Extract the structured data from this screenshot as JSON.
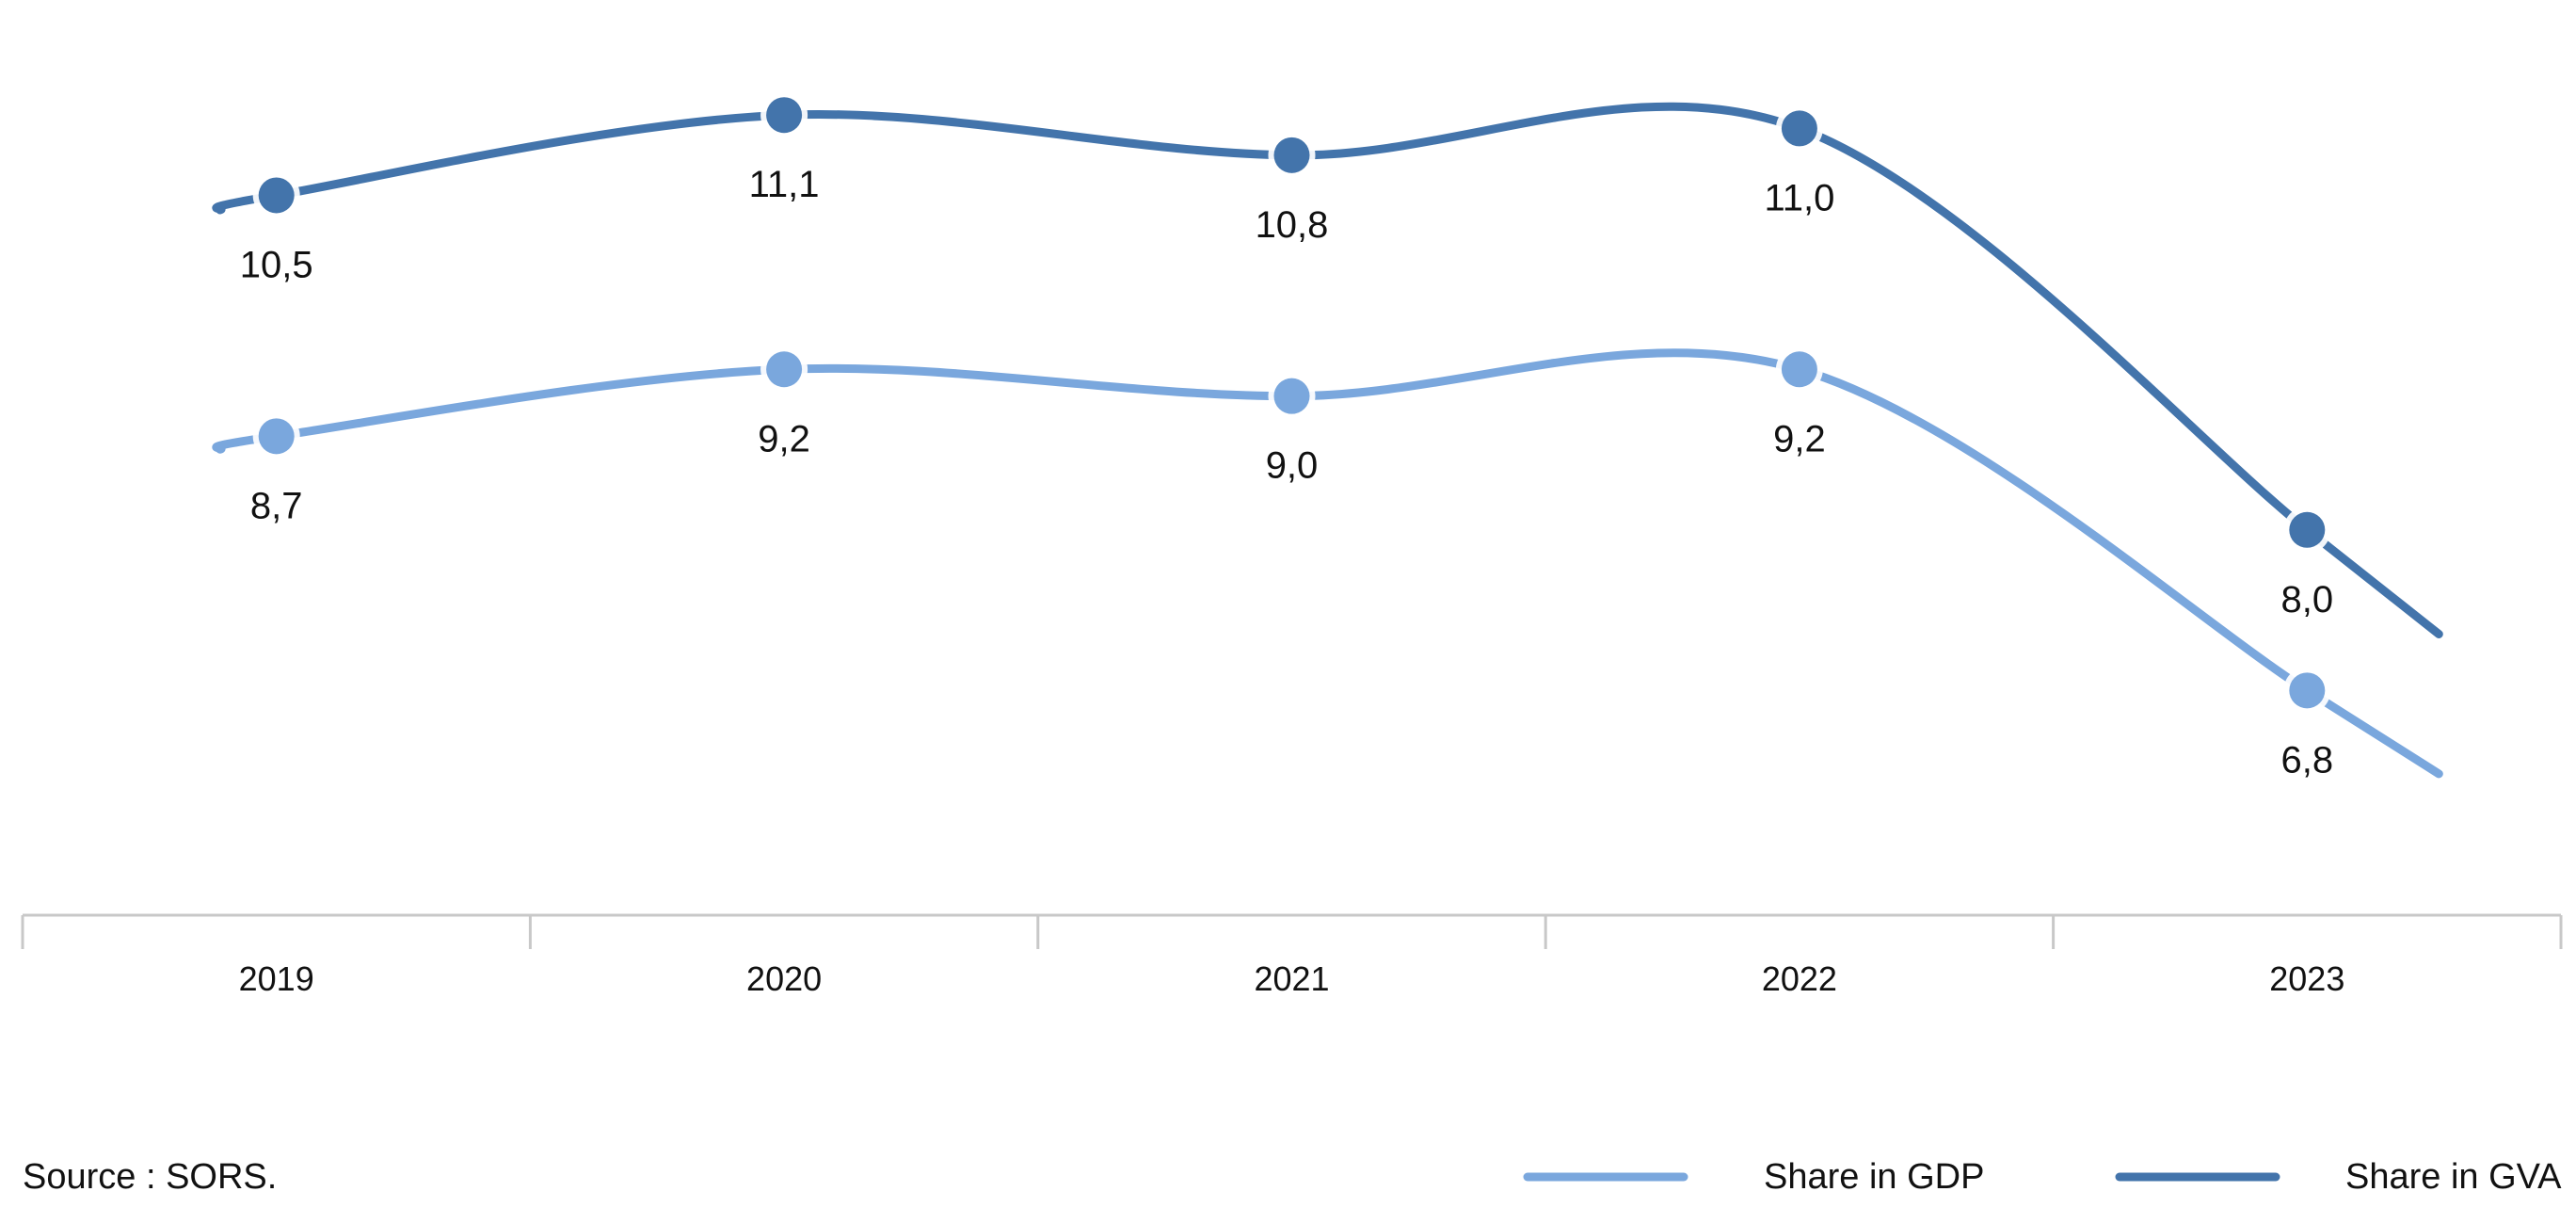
{
  "chart_data": {
    "type": "line",
    "categories": [
      "2019",
      "2020",
      "2021",
      "2022",
      "2023"
    ],
    "series": [
      {
        "name": "Share in GDP",
        "values": [
          8.7,
          9.2,
          9.0,
          9.2,
          6.8
        ],
        "labels": [
          "8,7",
          "9,2",
          "9,0",
          "9,2",
          "6,8"
        ],
        "color": "#7aa7dd"
      },
      {
        "name": "Share in GVA",
        "values": [
          10.5,
          11.1,
          10.8,
          11.0,
          8.0
        ],
        "labels": [
          "10,5",
          "11,1",
          "10,8",
          "11,0",
          "8,0"
        ],
        "color": "#4374ab"
      }
    ],
    "legend_position": "bottom-right",
    "grid": false,
    "axis_color": "#c8c8c8"
  },
  "source": {
    "text": "Source : SORS."
  }
}
